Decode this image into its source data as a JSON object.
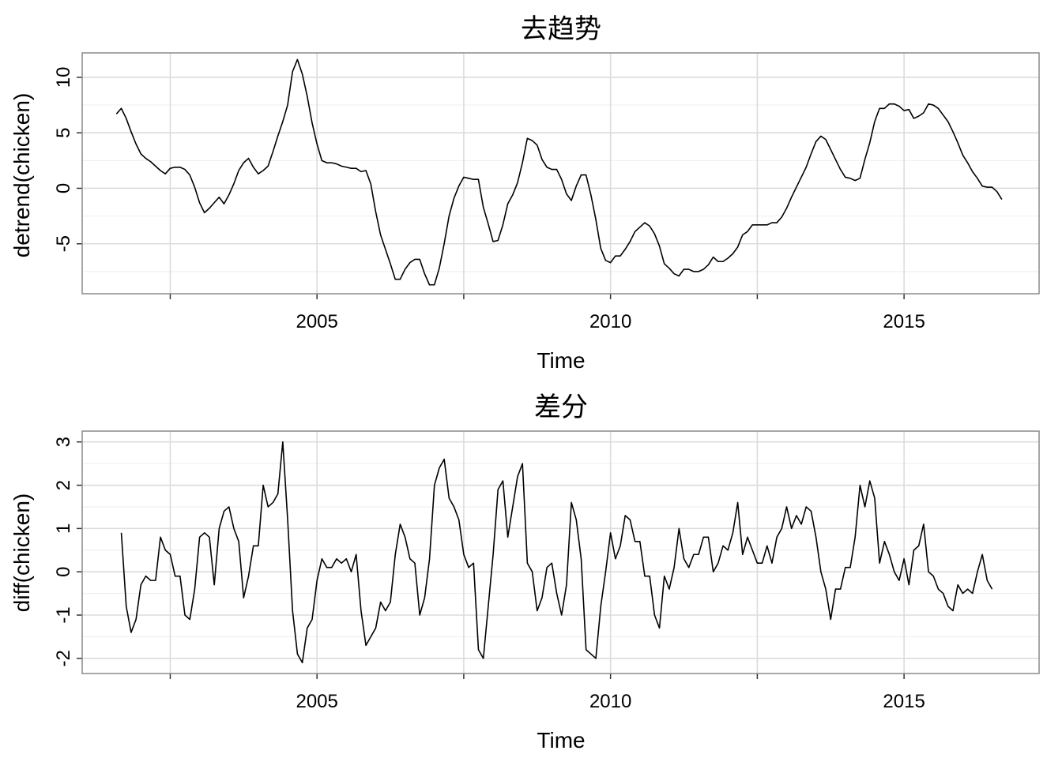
{
  "chart_data": [
    {
      "type": "line",
      "title": "去趋势",
      "xlabel": "Time",
      "ylabel": "detrend(chicken)",
      "xlim": [
        2001.0,
        2017.3
      ],
      "ylim": [
        -9.5,
        12.2
      ],
      "x_ticks": [
        2005,
        2010,
        2015
      ],
      "x_minor_ticks": [
        2002.5,
        2007.5,
        2012.5
      ],
      "y_ticks": [
        -5,
        0,
        5,
        10
      ],
      "grid": true,
      "series": [
        {
          "x_start": 2001.583,
          "x_step": 0.08333,
          "values": [
            6.7,
            7.2,
            6.3,
            5.1,
            4.0,
            3.1,
            2.7,
            2.4,
            2.0,
            1.6,
            1.3,
            1.8,
            1.9,
            1.9,
            1.7,
            1.2,
            0.1,
            -1.3,
            -2.2,
            -1.8,
            -1.3,
            -0.8,
            -1.4,
            -0.6,
            0.4,
            1.6,
            2.3,
            2.7,
            1.9,
            1.3,
            1.6,
            2.0,
            3.3,
            4.7,
            6.0,
            7.5,
            10.5,
            11.6,
            10.3,
            8.3,
            5.9,
            4.0,
            2.5,
            2.3,
            2.3,
            2.2,
            2.0,
            1.9,
            1.8,
            1.8,
            1.5,
            1.6,
            0.4,
            -2.1,
            -4.2,
            -5.5,
            -6.8,
            -8.2,
            -8.2,
            -7.3,
            -6.7,
            -6.4,
            -6.4,
            -7.7,
            -8.7,
            -8.7,
            -7.2,
            -5.0,
            -2.5,
            -0.9,
            0.2,
            1.0,
            0.9,
            0.8,
            0.8,
            -1.7,
            -3.2,
            -4.8,
            -4.7,
            -3.3,
            -1.4,
            -0.6,
            0.5,
            2.3,
            4.5,
            4.3,
            3.9,
            2.6,
            1.9,
            1.7,
            1.7,
            0.8,
            -0.5,
            -1.1,
            0.2,
            1.2,
            1.2,
            -0.6,
            -2.8,
            -5.4,
            -6.5,
            -6.7,
            -6.1,
            -6.1,
            -5.5,
            -4.8,
            -3.9,
            -3.5,
            -3.1,
            -3.4,
            -4.1,
            -5.2,
            -6.8,
            -7.2,
            -7.7,
            -7.9,
            -7.3,
            -7.3,
            -7.5,
            -7.5,
            -7.3,
            -6.9,
            -6.2,
            -6.6,
            -6.6,
            -6.3,
            -5.9,
            -5.3,
            -4.2,
            -3.9,
            -3.3,
            -3.3,
            -3.3,
            -3.3,
            -3.1,
            -3.1,
            -2.6,
            -1.8,
            -0.8,
            0.1,
            1.0,
            1.9,
            3.1,
            4.2,
            4.7,
            4.4,
            3.5,
            2.6,
            1.7,
            1.0,
            0.9,
            0.7,
            0.9,
            2.6,
            4.1,
            6.0,
            7.2,
            7.2,
            7.6,
            7.6,
            7.4,
            7.0,
            7.1,
            6.3,
            6.5,
            6.8,
            7.6,
            7.5,
            7.2,
            6.6,
            6.0,
            5.1,
            4.1,
            3.0,
            2.3,
            1.5,
            0.9,
            0.2,
            0.1,
            0.1,
            -0.3,
            -1.0
          ]
        }
      ]
    },
    {
      "type": "line",
      "title": "差分",
      "xlabel": "Time",
      "ylabel": "diff(chicken)",
      "xlim": [
        2001.0,
        2017.3
      ],
      "ylim": [
        -2.35,
        3.25
      ],
      "x_ticks": [
        2005,
        2010,
        2015
      ],
      "x_minor_ticks": [
        2002.5,
        2007.5,
        2012.5
      ],
      "y_ticks": [
        -2,
        -1,
        0,
        1,
        2,
        3
      ],
      "grid": true,
      "series": [
        {
          "x_start": 2001.667,
          "x_step": 0.08333,
          "values": [
            0.9,
            -0.8,
            -1.4,
            -1.1,
            -0.3,
            -0.1,
            -0.2,
            -0.2,
            0.8,
            0.5,
            0.4,
            -0.1,
            -0.1,
            -1.0,
            -1.1,
            -0.4,
            0.8,
            0.9,
            0.8,
            -0.3,
            1.0,
            1.4,
            1.5,
            1.0,
            0.7,
            -0.6,
            -0.1,
            0.6,
            0.6,
            2.0,
            1.5,
            1.6,
            1.8,
            3.0,
            1.2,
            -0.9,
            -1.9,
            -2.1,
            -1.3,
            -1.1,
            -0.2,
            0.3,
            0.1,
            0.1,
            0.3,
            0.2,
            0.3,
            0.0,
            0.4,
            -0.9,
            -1.7,
            -1.5,
            -1.3,
            -0.7,
            -0.9,
            -0.7,
            0.4,
            1.1,
            0.8,
            0.3,
            0.2,
            -1.0,
            -0.6,
            0.3,
            2.0,
            2.4,
            2.6,
            1.7,
            1.5,
            1.2,
            0.4,
            0.1,
            0.2,
            -1.8,
            -2.0,
            -0.8,
            0.4,
            1.9,
            2.1,
            0.8,
            1.5,
            2.2,
            2.5,
            0.2,
            0.0,
            -0.9,
            -0.6,
            0.1,
            0.2,
            -0.5,
            -1.0,
            -0.3,
            1.6,
            1.2,
            0.3,
            -1.8,
            -1.9,
            -2.0,
            -0.8,
            0.0,
            0.9,
            0.3,
            0.6,
            1.3,
            1.2,
            0.7,
            0.7,
            -0.1,
            -0.1,
            -1.0,
            -1.3,
            -0.1,
            -0.4,
            0.1,
            1.0,
            0.3,
            0.1,
            0.4,
            0.4,
            0.8,
            0.8,
            0.0,
            0.2,
            0.6,
            0.5,
            0.9,
            1.6,
            0.4,
            0.8,
            0.5,
            0.2,
            0.2,
            0.6,
            0.2,
            0.8,
            1.0,
            1.5,
            1.0,
            1.3,
            1.1,
            1.5,
            1.4,
            0.8,
            0.0,
            -0.4,
            -1.1,
            -0.4,
            -0.4,
            0.1,
            0.1,
            0.8,
            2.0,
            1.5,
            2.1,
            1.7,
            0.2,
            0.7,
            0.4,
            0.0,
            -0.2,
            0.3,
            -0.3,
            0.5,
            0.6,
            1.1,
            0.0,
            -0.1,
            -0.4,
            -0.5,
            -0.8,
            -0.9,
            -0.3,
            -0.5,
            -0.4,
            -0.5,
            0.0,
            0.4,
            -0.2,
            -0.4
          ]
        }
      ]
    }
  ]
}
